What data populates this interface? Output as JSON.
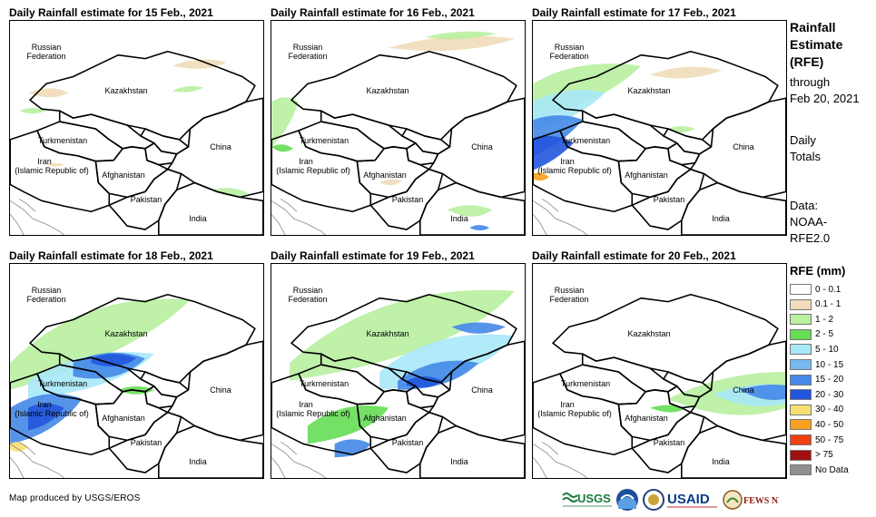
{
  "panels": [
    {
      "title": "Daily Rainfall estimate for 15 Feb., 2021"
    },
    {
      "title": "Daily Rainfall estimate for 16 Feb., 2021"
    },
    {
      "title": "Daily Rainfall estimate for 17 Feb., 2021"
    },
    {
      "title": "Daily Rainfall estimate for 18 Feb., 2021"
    },
    {
      "title": "Daily Rainfall estimate for 19 Feb., 2021"
    },
    {
      "title": "Daily Rainfall estimate for 20 Feb., 2021"
    }
  ],
  "map_labels": {
    "russia": "Russian",
    "federation": "Federation",
    "kazakhstan": "Kazakhstan",
    "turkmenistan": "Turkmenistan",
    "iran": "Iran",
    "iran_sub": "(Islamic Republic of)",
    "afghanistan": "Afghanistan",
    "pakistan": "Pakistan",
    "china": "China",
    "india": "India"
  },
  "side": {
    "title1": "Rainfall",
    "title2": "Estimate",
    "title3": "(RFE)",
    "through": "through",
    "date": "Feb 20, 2021",
    "daily": "Daily",
    "totals": "Totals",
    "data": "Data:",
    "source1": "NOAA-",
    "source2": "RFE2.0"
  },
  "legend": {
    "title": "RFE (mm)",
    "items": [
      {
        "label": "0 - 0.1",
        "color": "#ffffff"
      },
      {
        "label": "0.1 - 1",
        "color": "#f0dcb8"
      },
      {
        "label": "1 - 2",
        "color": "#b8f0a0"
      },
      {
        "label": "2 - 5",
        "color": "#66dd55"
      },
      {
        "label": "5 - 10",
        "color": "#a8e8f8"
      },
      {
        "label": "10 - 15",
        "color": "#78b8f0"
      },
      {
        "label": "15 - 20",
        "color": "#4488e8"
      },
      {
        "label": "20 - 30",
        "color": "#2255dd"
      },
      {
        "label": "30 - 40",
        "color": "#f8e070"
      },
      {
        "label": "40 - 50",
        "color": "#f8a020"
      },
      {
        "label": "50 - 75",
        "color": "#f04010"
      },
      {
        "label": "> 75",
        "color": "#a01010"
      },
      {
        "label": "No Data",
        "color": "#909090"
      }
    ]
  },
  "credit": "Map produced by USGS/EROS",
  "logos": {
    "usgs": "USGS",
    "usaid": "USAID",
    "fewsnet": "FEWS NET"
  }
}
